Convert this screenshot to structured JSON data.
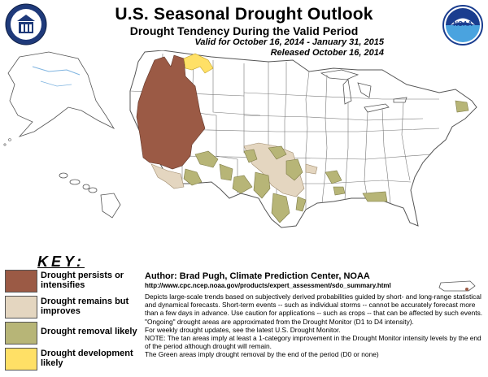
{
  "header": {
    "title": "U.S. Seasonal Drought Outlook",
    "subtitle": "Drought Tendency During the Valid Period",
    "valid_line": "Valid for October 16, 2014 - January 31, 2015",
    "released_line": "Released October 16, 2014",
    "left_logo_icon": "usda-seal-icon",
    "right_logo_icon": "noaa-logo-icon",
    "right_logo_text": "NOAA"
  },
  "legend": {
    "key_title": "KEY:",
    "items": [
      {
        "label": "Drought persists or intensifies",
        "color": "#9b5a45"
      },
      {
        "label": "Drought remains but improves",
        "color": "#e4d6c0"
      },
      {
        "label": "Drought removal likely",
        "color": "#b7b577"
      },
      {
        "label": "Drought development likely",
        "color": "#ffe066"
      }
    ]
  },
  "credits": {
    "author": "Author: Brad Pugh, Climate Prediction Center, NOAA",
    "url": "http://www.cpc.ncep.noaa.gov/products/expert_assessment/sdo_summary.html",
    "notes": [
      "Depicts large-scale trends based on subjectively derived probabilities guided by short- and long-range statistical and dynamical forecasts. Short-term events -- such as individual storms -- cannot be accurately forecast more than a few days in advance. Use caution for applications -- such as crops -- that can be affected by such events. \"Ongoing\" drought areas are approximated from the Drought Monitor (D1 to D4 intensity).",
      "For weekly drought updates, see the latest U.S. Drought Monitor.",
      "NOTE: The tan areas imply at least a 1-category improvement in the Drought Monitor intensity levels by the end of the period although drought will remain.",
      "The Green areas imply drought removal by the end of the period (D0 or none)"
    ]
  },
  "map": {
    "land_color": "#ffffff",
    "border_color": "#555555",
    "water_color": "#7fb4e0"
  }
}
